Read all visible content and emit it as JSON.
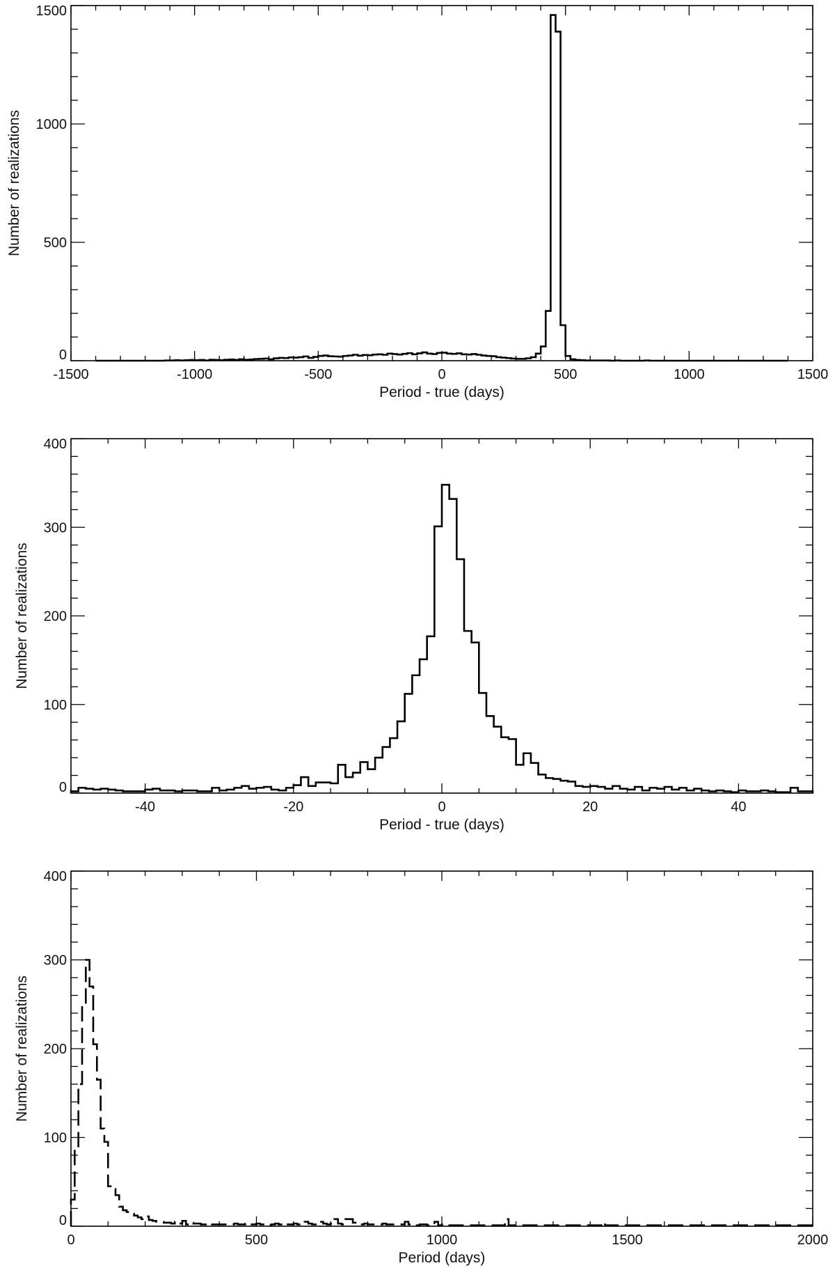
{
  "chart_data": [
    {
      "type": "histogram",
      "xlabel": "Period - true (days)",
      "ylabel": "Number of realizations",
      "xlim": [
        -1500,
        1500
      ],
      "ylim": [
        0,
        1500
      ],
      "x_ticks": [
        -1500,
        -1000,
        -500,
        0,
        500,
        1000,
        1500
      ],
      "x_tick_labels": [
        "-1500",
        "-1000",
        "-500",
        "0",
        "500",
        "1000",
        "1500"
      ],
      "y_ticks": [
        0,
        500,
        1000,
        1500
      ],
      "y_tick_labels": [
        "0",
        "500",
        "1000",
        "1500"
      ],
      "grid": false,
      "line_style": "solid",
      "bins": {
        "start": -1400,
        "width": 20,
        "values": [
          0,
          0,
          0,
          0,
          0,
          0,
          0,
          0,
          0,
          0,
          0,
          0,
          0,
          0,
          1,
          1,
          2,
          1,
          2,
          3,
          2,
          3,
          1,
          4,
          3,
          2,
          4,
          5,
          3,
          6,
          4,
          5,
          7,
          8,
          9,
          6,
          10,
          12,
          11,
          14,
          13,
          15,
          18,
          12,
          16,
          20,
          22,
          19,
          18,
          17,
          20,
          22,
          25,
          21,
          24,
          23,
          26,
          27,
          25,
          30,
          28,
          26,
          29,
          32,
          27,
          31,
          35,
          30,
          28,
          33,
          34,
          30,
          29,
          31,
          27,
          26,
          28,
          25,
          22,
          20,
          19,
          15,
          13,
          11,
          9,
          8,
          8,
          10,
          15,
          30,
          60,
          210,
          1460,
          1390,
          150,
          20,
          6,
          3,
          2,
          1,
          1,
          1,
          1,
          1,
          0,
          1,
          0,
          0,
          0,
          0,
          0,
          1,
          0,
          0,
          0,
          0,
          0,
          0,
          0,
          0,
          0,
          0,
          0,
          0,
          0,
          0,
          0,
          0,
          0,
          0,
          0,
          0,
          0,
          0,
          0,
          0,
          0,
          0,
          0,
          0
        ]
      }
    },
    {
      "type": "histogram",
      "xlabel": "Period - true (days)",
      "ylabel": "Number of realizations",
      "xlim": [
        -50,
        50
      ],
      "ylim": [
        0,
        400
      ],
      "x_ticks": [
        -40,
        -20,
        0,
        20,
        40
      ],
      "x_tick_labels": [
        "-40",
        "-20",
        "0",
        "20",
        "40"
      ],
      "y_ticks": [
        0,
        100,
        200,
        300,
        400
      ],
      "y_tick_labels": [
        "0",
        "100",
        "200",
        "300",
        "400"
      ],
      "grid": false,
      "line_style": "solid",
      "bins": {
        "start": -50,
        "width": 1,
        "values": [
          2,
          6,
          5,
          4,
          5,
          4,
          3,
          2,
          2,
          2,
          4,
          5,
          3,
          3,
          2,
          3,
          3,
          2,
          2,
          6,
          3,
          4,
          6,
          8,
          5,
          6,
          7,
          4,
          3,
          6,
          9,
          18,
          8,
          12,
          12,
          11,
          32,
          18,
          23,
          35,
          27,
          40,
          52,
          62,
          81,
          112,
          133,
          151,
          177,
          301,
          348,
          332,
          264,
          183,
          170,
          113,
          87,
          75,
          63,
          61,
          32,
          45,
          34,
          21,
          17,
          16,
          14,
          13,
          8,
          7,
          8,
          7,
          5,
          8,
          5,
          4,
          7,
          3,
          6,
          5,
          7,
          4,
          6,
          3,
          5,
          3,
          2,
          3,
          2,
          1,
          3,
          2,
          2,
          3,
          2,
          1,
          1,
          6,
          2,
          2
        ]
      }
    },
    {
      "type": "histogram",
      "xlabel": "Period (days)",
      "ylabel": "Number of realizations",
      "xlim": [
        0,
        2000
      ],
      "ylim": [
        0,
        400
      ],
      "x_ticks": [
        0,
        500,
        1000,
        1500,
        2000
      ],
      "x_tick_labels": [
        "0",
        "500",
        "1000",
        "1500",
        "2000"
      ],
      "y_ticks": [
        0,
        100,
        200,
        300,
        400
      ],
      "y_tick_labels": [
        "0",
        "100",
        "200",
        "300",
        "400"
      ],
      "grid": false,
      "line_style": "long-dash",
      "bins": {
        "start": 0,
        "width": 10,
        "values": [
          30,
          90,
          160,
          250,
          300,
          270,
          205,
          165,
          110,
          95,
          45,
          42,
          35,
          22,
          18,
          16,
          14,
          12,
          10,
          8,
          11,
          7,
          6,
          5,
          5,
          4,
          4,
          3,
          5,
          3,
          6,
          2,
          4,
          3,
          3,
          2,
          2,
          3,
          2,
          2,
          2,
          2,
          2,
          2,
          3,
          2,
          2,
          3,
          2,
          2,
          3,
          2,
          2,
          1,
          2,
          3,
          2,
          3,
          2,
          2,
          3,
          2,
          2,
          5,
          3,
          2,
          2,
          5,
          3,
          2,
          3,
          8,
          3,
          2,
          8,
          8,
          4,
          3,
          2,
          3,
          2,
          2,
          2,
          2,
          3,
          2,
          2,
          2,
          2,
          2,
          5,
          2,
          2,
          1,
          2,
          2,
          1,
          1,
          5,
          1,
          2,
          1,
          1,
          1,
          1,
          1,
          1,
          1,
          1,
          1,
          1,
          1,
          1,
          1,
          1,
          1,
          1,
          8,
          1,
          1,
          1,
          1,
          1,
          1,
          1,
          1,
          1,
          1,
          1,
          1,
          1,
          1,
          1,
          1,
          1,
          1,
          1,
          1,
          1,
          1,
          1,
          1,
          1,
          4,
          1,
          1,
          1,
          1,
          1,
          1,
          1,
          1,
          1,
          1,
          1,
          1,
          1,
          1,
          1,
          1,
          1,
          1,
          1,
          1,
          1,
          1,
          1,
          1,
          1,
          1,
          1,
          1,
          1,
          1,
          1,
          1,
          1,
          1,
          1,
          1,
          1,
          1,
          1,
          1,
          1,
          1,
          1,
          1,
          1,
          1,
          1,
          1,
          1,
          1,
          1,
          1,
          1,
          1,
          1,
          1
        ]
      }
    }
  ]
}
